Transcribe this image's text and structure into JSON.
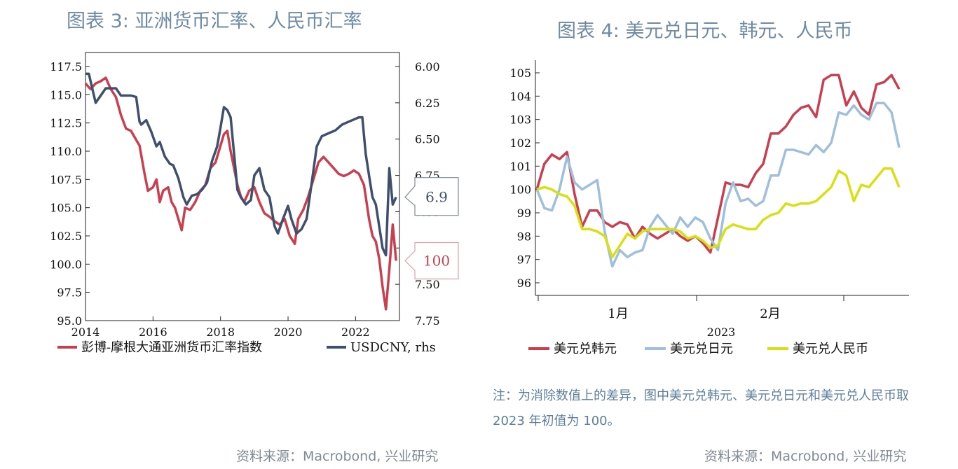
{
  "chart_data": [
    {
      "type": "line",
      "title": "图表 3:  亚洲货币汇率、人民币汇率",
      "x_ticks": [
        "2014",
        "2016",
        "2018",
        "2020",
        "2022"
      ],
      "left_axis": {
        "ylim": [
          95.0,
          117.5
        ],
        "ticks": [
          "117.5",
          "115.0",
          "112.5",
          "110.0",
          "107.5",
          "105.0",
          "102.5",
          "100.0",
          "97.5",
          "95.0"
        ]
      },
      "right_axis": {
        "ylim": [
          6.0,
          7.75
        ],
        "reversed": true,
        "ticks": [
          "6.00",
          "6.25",
          "6.50",
          "6.75",
          "7.00",
          "7.25",
          "7.50",
          "7.75"
        ]
      },
      "grid": false,
      "legend_position": "bottom",
      "series": [
        {
          "name": "彭博-摩根大通亚洲货币汇率指数",
          "axis": "left",
          "color": "#c8404f",
          "x": [
            2014.0,
            2014.15,
            2014.3,
            2014.45,
            2014.6,
            2014.75,
            2014.9,
            2015.05,
            2015.2,
            2015.35,
            2015.5,
            2015.6,
            2015.75,
            2015.85,
            2016.0,
            2016.1,
            2016.2,
            2016.3,
            2016.45,
            2016.55,
            2016.65,
            2016.75,
            2016.85,
            2016.95,
            2017.1,
            2017.25,
            2017.4,
            2017.55,
            2017.7,
            2017.85,
            2018.0,
            2018.1,
            2018.2,
            2018.3,
            2018.4,
            2018.5,
            2018.6,
            2018.7,
            2018.85,
            2019.0,
            2019.15,
            2019.3,
            2019.45,
            2019.6,
            2019.75,
            2019.9,
            2020.05,
            2020.2,
            2020.3,
            2020.45,
            2020.6,
            2020.75,
            2020.9,
            2021.05,
            2021.2,
            2021.35,
            2021.5,
            2021.65,
            2021.8,
            2021.95,
            2022.1,
            2022.25,
            2022.4,
            2022.5,
            2022.6,
            2022.7,
            2022.8,
            2022.9,
            2023.0,
            2023.1,
            2023.2
          ],
          "values": [
            116.0,
            115.5,
            116.0,
            116.2,
            116.5,
            115.5,
            114.8,
            113.2,
            112.0,
            111.8,
            111.0,
            110.5,
            108.0,
            106.5,
            106.8,
            107.5,
            105.5,
            106.5,
            106.8,
            105.5,
            105.0,
            104.0,
            103.0,
            105.0,
            104.8,
            105.5,
            106.5,
            107.0,
            108.5,
            109.0,
            110.5,
            111.5,
            111.8,
            110.0,
            108.5,
            107.0,
            106.0,
            105.5,
            106.5,
            106.8,
            105.5,
            104.5,
            104.2,
            103.8,
            103.5,
            104.0,
            102.5,
            101.8,
            104.0,
            104.8,
            106.0,
            107.5,
            109.0,
            109.5,
            109.0,
            108.5,
            108.0,
            107.8,
            108.0,
            108.3,
            108.0,
            107.0,
            104.0,
            102.5,
            102.0,
            100.5,
            98.0,
            96.0,
            99.5,
            103.5,
            100.3
          ]
        },
        {
          "name": "USDCNY, rhs",
          "axis": "right",
          "color": "#3f4f6c",
          "x": [
            2014.0,
            2014.1,
            2014.2,
            2014.3,
            2014.45,
            2014.6,
            2014.75,
            2014.9,
            2015.05,
            2015.2,
            2015.35,
            2015.5,
            2015.6,
            2015.65,
            2015.8,
            2015.95,
            2016.1,
            2016.2,
            2016.35,
            2016.5,
            2016.6,
            2016.75,
            2016.9,
            2017.0,
            2017.15,
            2017.3,
            2017.45,
            2017.6,
            2017.75,
            2017.9,
            2018.0,
            2018.1,
            2018.2,
            2018.3,
            2018.4,
            2018.5,
            2018.6,
            2018.75,
            2018.9,
            2019.0,
            2019.15,
            2019.3,
            2019.45,
            2019.6,
            2019.7,
            2019.85,
            2020.0,
            2020.1,
            2020.25,
            2020.4,
            2020.55,
            2020.7,
            2020.85,
            2021.0,
            2021.2,
            2021.4,
            2021.6,
            2021.8,
            2022.0,
            2022.1,
            2022.2,
            2022.3,
            2022.4,
            2022.5,
            2022.6,
            2022.7,
            2022.8,
            2022.9,
            2023.0,
            2023.1,
            2023.2
          ],
          "values": [
            6.05,
            6.05,
            6.15,
            6.25,
            6.2,
            6.15,
            6.15,
            6.15,
            6.2,
            6.2,
            6.2,
            6.21,
            6.38,
            6.4,
            6.37,
            6.45,
            6.55,
            6.52,
            6.62,
            6.67,
            6.68,
            6.77,
            6.9,
            6.95,
            6.89,
            6.88,
            6.85,
            6.8,
            6.65,
            6.55,
            6.42,
            6.28,
            6.3,
            6.35,
            6.6,
            6.85,
            6.9,
            6.95,
            6.92,
            6.75,
            6.7,
            6.85,
            6.9,
            7.1,
            7.15,
            7.05,
            6.96,
            7.05,
            7.15,
            7.12,
            7.05,
            6.8,
            6.55,
            6.48,
            6.46,
            6.44,
            6.4,
            6.38,
            6.36,
            6.35,
            6.35,
            6.6,
            6.75,
            6.9,
            6.95,
            7.1,
            7.25,
            7.3,
            6.7,
            6.95,
            6.9
          ]
        }
      ],
      "callouts": [
        {
          "label": "6.9",
          "color": "#3f4f6c"
        },
        {
          "label": "100",
          "color": "#c8404f"
        }
      ]
    },
    {
      "type": "line",
      "title": "图表 4:  美元兑日元、韩元、人民币",
      "xlabel": "2023",
      "x_ticks": [
        "1月",
        "2月"
      ],
      "ylim": [
        96,
        105
      ],
      "y_ticks": [
        "105",
        "104",
        "103",
        "102",
        "101",
        "100",
        "99",
        "98",
        "97",
        "96"
      ],
      "grid": false,
      "legend_position": "bottom",
      "x_points": 40,
      "series": [
        {
          "name": "美元兑韩元",
          "color": "#c8404f",
          "values": [
            100.0,
            101.1,
            101.5,
            101.3,
            101.6,
            99.8,
            98.4,
            99.1,
            99.1,
            98.6,
            98.4,
            98.6,
            98.5,
            97.9,
            98.4,
            98.1,
            97.9,
            98.1,
            98.3,
            98.0,
            97.8,
            98.0,
            97.7,
            97.3,
            98.8,
            100.3,
            100.2,
            100.2,
            100.1,
            100.7,
            101.1,
            102.4,
            102.4,
            102.7,
            103.2,
            103.5,
            103.6,
            103.1,
            104.7,
            104.9
          ]
        },
        {
          "name": "美元兑日元",
          "color": "#9fbfdc",
          "values": [
            100.0,
            99.2,
            99.1,
            100.0,
            101.4,
            100.3,
            100.0,
            100.2,
            100.4,
            98.2,
            96.7,
            97.4,
            97.1,
            97.3,
            97.4,
            98.4,
            98.9,
            98.5,
            98.1,
            98.8,
            98.4,
            98.8,
            98.6,
            97.9,
            97.4,
            99.4,
            100.3,
            99.5,
            99.6,
            99.3,
            99.5,
            100.6,
            100.6,
            101.7,
            101.7,
            101.6,
            101.5,
            101.9,
            101.6,
            102.0
          ]
        },
        {
          "name": "美元兑人民币",
          "color": "#d7e012",
          "values": [
            100.0,
            100.1,
            100.0,
            99.8,
            99.7,
            99.3,
            98.3,
            98.3,
            98.2,
            98.0,
            97.1,
            97.6,
            98.1,
            97.9,
            98.2,
            98.3,
            98.3,
            98.3,
            98.3,
            98.2,
            97.9,
            98.0,
            97.8,
            97.5,
            97.6,
            98.3,
            98.5,
            98.4,
            98.3,
            98.3,
            98.7,
            98.9,
            99.0,
            99.4,
            99.3,
            99.4,
            99.4,
            99.5,
            99.8,
            100.1
          ]
        }
      ],
      "series_tail": [
        {
          "name": "美元兑韩元",
          "values": [
            104.9,
            103.6,
            104.2,
            103.5,
            103.2,
            104.5,
            104.6,
            104.9,
            104.3
          ]
        },
        {
          "name": "美元兑日元",
          "values": [
            103.3,
            103.2,
            103.6,
            103.2,
            103.0,
            103.7,
            103.7,
            103.3,
            101.8
          ]
        },
        {
          "name": "美元兑人民币",
          "values": [
            100.8,
            100.6,
            99.5,
            100.2,
            100.1,
            100.5,
            100.9,
            100.9,
            100.1
          ]
        }
      ],
      "note": "注：为消除数值上的差异，图中美元兑韩元、美元兑日元和美元兑人民币取 2023 年初值为 100。"
    }
  ],
  "sources": [
    "资料来源：Macrobond, 兴业研究",
    "资料来源：Macrobond, 兴业研究"
  ]
}
